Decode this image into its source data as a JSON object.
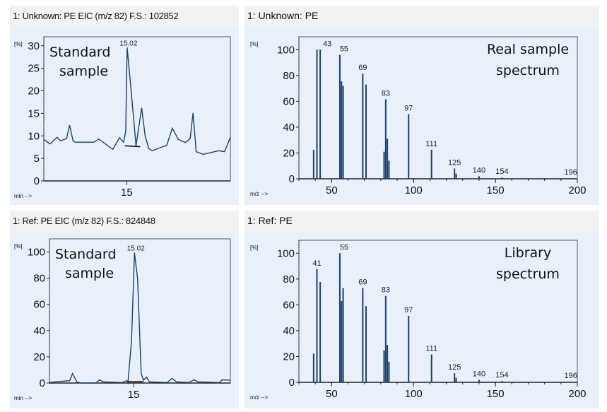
{
  "chart_data": [
    {
      "id": "tl",
      "type": "line",
      "title": "1: Unknown: PE EIC (m/z 82) F.S.: 102852",
      "ylabel": "[%]",
      "xlabel": "min -->",
      "annotation": [
        "Standard",
        "sample"
      ],
      "xlim": [
        11,
        20
      ],
      "ylim": [
        0,
        32
      ],
      "x_ticks": [
        15
      ],
      "y_ticks": [
        0,
        5,
        10,
        15,
        20,
        25,
        30
      ],
      "peak_label": {
        "x": 15.02,
        "y": 29.6,
        "text": "15.02"
      },
      "baseline": [
        [
          14.9,
          7.8
        ],
        [
          15.65,
          7.6
        ]
      ],
      "x": [
        11.0,
        11.3,
        11.64,
        11.81,
        12.1,
        12.24,
        12.41,
        12.5,
        13.42,
        13.65,
        14.33,
        14.65,
        14.85,
        14.95,
        15.02,
        15.17,
        15.45,
        15.55,
        15.72,
        15.89,
        16.06,
        16.23,
        16.8,
        16.92,
        17.2,
        17.49,
        17.83,
        18.06,
        18.2,
        18.35,
        18.69,
        19.43,
        19.72,
        20.0
      ],
      "y": [
        9.2,
        8.2,
        9.7,
        8.9,
        9.4,
        12.4,
        8.9,
        8.6,
        8.6,
        9.3,
        7.0,
        9.6,
        8.6,
        11.0,
        29.6,
        22.3,
        7.8,
        11.0,
        16.2,
        10.0,
        7.2,
        6.7,
        7.7,
        7.8,
        11.7,
        9.2,
        8.5,
        9.4,
        15.1,
        6.5,
        5.9,
        6.7,
        6.5,
        9.7
      ]
    },
    {
      "id": "tr",
      "type": "bar",
      "title": "1: Unknown: PE",
      "ylabel": "[%]",
      "xlabel": "m/z -->",
      "annotation": [
        "Real sample",
        "spectrum"
      ],
      "xlim": [
        30,
        200
      ],
      "ylim": [
        0,
        110
      ],
      "x_ticks": [
        50,
        100,
        150,
        200
      ],
      "y_ticks": [
        0,
        20,
        40,
        60,
        80,
        100
      ],
      "mz": [
        39,
        41,
        43,
        55,
        56,
        57,
        69,
        71,
        82,
        83,
        84,
        85,
        97,
        111,
        125,
        126,
        140,
        154,
        196
      ],
      "intensity": [
        22.5,
        100,
        100,
        96,
        75.5,
        72,
        81.5,
        73,
        21,
        61.5,
        31,
        14,
        50,
        22.5,
        8,
        4,
        2,
        1,
        0.5
      ],
      "labeled_peaks": [
        43,
        55,
        69,
        83,
        97,
        111,
        125,
        140,
        154,
        196
      ]
    },
    {
      "id": "bl",
      "type": "line",
      "title": "1: Ref: PE EIC (m/z 82) F.S.: 824848",
      "ylabel": "[%]",
      "xlabel": "min -->",
      "annotation": [
        "Standard",
        "sample"
      ],
      "xlim": [
        11,
        19.6
      ],
      "ylim": [
        0,
        110
      ],
      "x_ticks": [
        15
      ],
      "y_ticks": [
        0,
        20,
        40,
        60,
        80,
        100
      ],
      "peak_label": {
        "x": 15.04,
        "y": 99.5,
        "text": "15.02"
      },
      "baseline": [
        [
          14.73,
          1.0
        ],
        [
          15.47,
          1.0
        ]
      ],
      "x": [
        11.0,
        11.28,
        11.96,
        12.1,
        12.3,
        12.47,
        13.21,
        13.38,
        13.55,
        14.45,
        14.68,
        14.73,
        14.9,
        15.04,
        15.19,
        15.36,
        15.47,
        15.61,
        15.75,
        16.6,
        16.83,
        17.03,
        17.62,
        17.87,
        18.07,
        19.09,
        19.2,
        19.6
      ],
      "y": [
        0.4,
        0.9,
        1.8,
        7.2,
        0.9,
        0,
        0,
        2.4,
        0.9,
        0.4,
        1.8,
        0,
        32,
        99.5,
        79.6,
        7.2,
        2.2,
        4.5,
        0.9,
        0.4,
        3.6,
        0.9,
        0.4,
        2.4,
        0.9,
        0.4,
        2.4,
        2.2
      ]
    },
    {
      "id": "br",
      "type": "bar",
      "title": "1: Ref: PE",
      "ylabel": "[%]",
      "xlabel": "m/z -->",
      "annotation": [
        "Library",
        "spectrum"
      ],
      "xlim": [
        30,
        200
      ],
      "ylim": [
        0,
        110
      ],
      "x_ticks": [
        50,
        100,
        150,
        200
      ],
      "y_ticks": [
        0,
        20,
        40,
        60,
        80,
        100
      ],
      "mz": [
        39,
        41,
        43,
        55,
        56,
        57,
        69,
        71,
        82,
        83,
        84,
        85,
        97,
        111,
        125,
        126,
        140,
        154,
        196
      ],
      "intensity": [
        22.3,
        87.6,
        77.7,
        100,
        63,
        73,
        73,
        59,
        24.7,
        67,
        29,
        16,
        51.5,
        21.6,
        7,
        3.5,
        2,
        1,
        0.5
      ],
      "labeled_peaks": [
        41,
        55,
        69,
        83,
        97,
        111,
        125,
        140,
        154,
        196
      ]
    }
  ]
}
